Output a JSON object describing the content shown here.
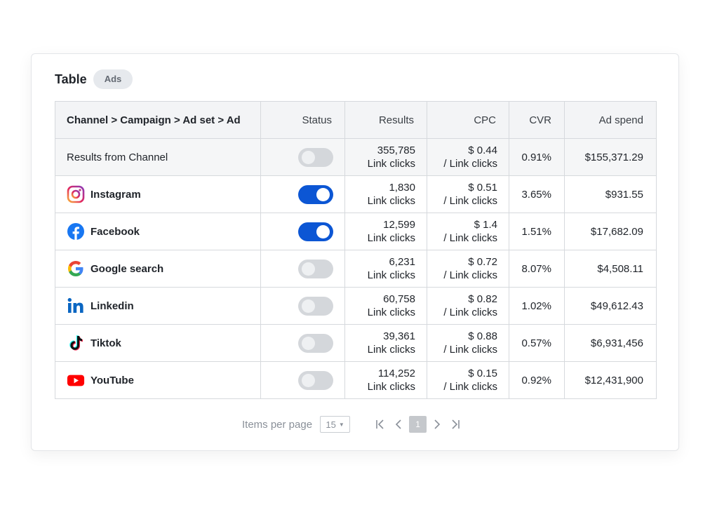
{
  "header": {
    "title": "Table",
    "badge": "Ads"
  },
  "columns": {
    "channel": "Channel > Campaign > Ad set > Ad",
    "status": "Status",
    "results": "Results",
    "cpc": "CPC",
    "cvr": "CVR",
    "spend": "Ad spend"
  },
  "summary": {
    "label": "Results from Channel",
    "status_on": false,
    "results_value": "355,785",
    "results_unit": "Link clicks",
    "cpc_value": "$ 0.44",
    "cpc_unit": "/ Link clicks",
    "cvr": "0.91%",
    "spend": "$155,371.29"
  },
  "rows": [
    {
      "name": "Instagram",
      "icon": "instagram-icon",
      "status_on": true,
      "results_value": "1,830",
      "results_unit": "Link clicks",
      "cpc_value": "$ 0.51",
      "cpc_unit": "/ Link clicks",
      "cvr": "3.65%",
      "spend": "$931.55"
    },
    {
      "name": "Facebook",
      "icon": "facebook-icon",
      "status_on": true,
      "results_value": "12,599",
      "results_unit": "Link clicks",
      "cpc_value": "$ 1.4",
      "cpc_unit": "/ Link clicks",
      "cvr": "1.51%",
      "spend": "$17,682.09"
    },
    {
      "name": "Google search",
      "icon": "google-icon",
      "status_on": false,
      "results_value": "6,231",
      "results_unit": "Link clicks",
      "cpc_value": "$ 0.72",
      "cpc_unit": "/ Link clicks",
      "cvr": "8.07%",
      "spend": "$4,508.11"
    },
    {
      "name": "Linkedin",
      "icon": "linkedin-icon",
      "status_on": false,
      "results_value": "60,758",
      "results_unit": "Link clicks",
      "cpc_value": "$ 0.82",
      "cpc_unit": "/ Link clicks",
      "cvr": "1.02%",
      "spend": "$49,612.43"
    },
    {
      "name": "Tiktok",
      "icon": "tiktok-icon",
      "status_on": false,
      "results_value": "39,361",
      "results_unit": "Link clicks",
      "cpc_value": "$ 0.88",
      "cpc_unit": "/ Link clicks",
      "cvr": "0.57%",
      "spend": "$6,931,456"
    },
    {
      "name": "YouTube",
      "icon": "youtube-icon",
      "status_on": false,
      "results_value": "114,252",
      "results_unit": "Link clicks",
      "cpc_value": "$ 0.15",
      "cpc_unit": "/ Link clicks",
      "cvr": "0.92%",
      "spend": "$12,431,900"
    }
  ],
  "footer": {
    "items_per_page_label": "Items per page",
    "items_per_page_value": "15",
    "current_page": "1"
  },
  "colors": {
    "toggle_on": "#0c56d4",
    "toggle_off": "#d4d7db",
    "header_bg": "#f3f4f6"
  }
}
